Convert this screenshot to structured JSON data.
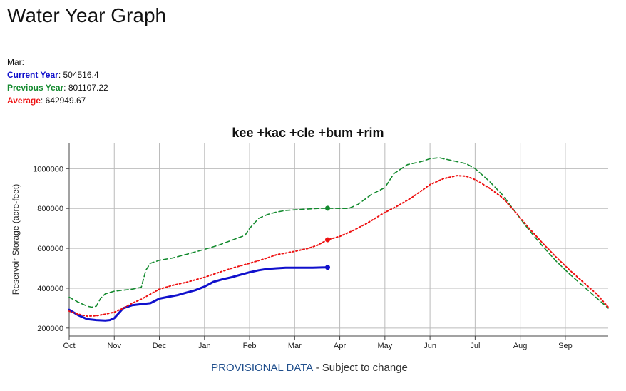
{
  "page_title": "Water Year Graph",
  "summary": {
    "month": "Mar:",
    "current_label": "Current Year",
    "current_value": ": 504516.4",
    "previous_label": "Previous Year",
    "previous_value": ": 801107.22",
    "average_label": "Average",
    "average_value": ": 642949.67"
  },
  "footer": {
    "provisional": "PROVISIONAL DATA",
    "rest": " - Subject to change"
  },
  "colors": {
    "current": "#1010cc",
    "previous": "#138a2e",
    "average": "#ee1111",
    "grid": "#bbbbbb",
    "axis": "#444444"
  },
  "chart_data": {
    "type": "line",
    "title": "kee +kac +cle +bum +rim",
    "ylabel": "Reservoir Storage (acre-feet)",
    "xlabel": "",
    "x_unit": "month of water year",
    "xlim": [
      0,
      11.95
    ],
    "ylim": [
      160000,
      1130000
    ],
    "yticks": [
      200000,
      400000,
      600000,
      800000,
      1000000
    ],
    "ytick_labels": [
      "200000",
      "400000",
      "600000",
      "800000",
      "1000000"
    ],
    "xticks": [
      0,
      1,
      2,
      3,
      4,
      5,
      6,
      7,
      8,
      9,
      10,
      11
    ],
    "xtick_labels": [
      "Oct",
      "Nov",
      "Dec",
      "Jan",
      "Feb",
      "Mar",
      "Apr",
      "May",
      "Jun",
      "Jul",
      "Aug",
      "Sep"
    ],
    "grid": true,
    "series": [
      {
        "key": "current",
        "style": "solid",
        "x": [
          0,
          0.2,
          0.4,
          0.6,
          0.8,
          0.9,
          1.0,
          1.1,
          1.2,
          1.4,
          1.6,
          1.8,
          2.0,
          2.2,
          2.4,
          2.6,
          2.8,
          3.0,
          3.2,
          3.4,
          3.6,
          3.8,
          4.0,
          4.2,
          4.4,
          4.6,
          4.8,
          5.0,
          5.2,
          5.4,
          5.6,
          5.73
        ],
        "values": [
          292000,
          265000,
          245000,
          240000,
          238000,
          240000,
          250000,
          275000,
          300000,
          315000,
          320000,
          325000,
          348000,
          357000,
          365000,
          378000,
          390000,
          408000,
          432000,
          445000,
          455000,
          468000,
          480000,
          490000,
          497000,
          500000,
          503000,
          503000,
          503000,
          503000,
          504000,
          504516.4
        ],
        "end_marker": true
      },
      {
        "key": "previous",
        "style": "dashed",
        "x": [
          0,
          0.2,
          0.4,
          0.5,
          0.6,
          0.7,
          0.8,
          1.0,
          1.2,
          1.4,
          1.6,
          1.7,
          1.8,
          2.0,
          2.3,
          2.6,
          3.0,
          3.3,
          3.6,
          3.9,
          4.0,
          4.2,
          4.4,
          4.6,
          4.8,
          5.0,
          5.2,
          5.5,
          5.73,
          6.0,
          6.2,
          6.4,
          6.7,
          7.0,
          7.2,
          7.5,
          7.8,
          8.0,
          8.2,
          8.5,
          8.8,
          9.0,
          9.3,
          9.6,
          9.9,
          10.2,
          10.5,
          10.8,
          11.1,
          11.4,
          11.7,
          11.95
        ],
        "values": [
          355000,
          330000,
          310000,
          305000,
          310000,
          350000,
          372000,
          385000,
          390000,
          395000,
          405000,
          490000,
          525000,
          540000,
          552000,
          570000,
          595000,
          615000,
          640000,
          665000,
          700000,
          750000,
          770000,
          782000,
          790000,
          793000,
          796000,
          800000,
          801107.22,
          800000,
          800000,
          820000,
          870000,
          905000,
          975000,
          1020000,
          1035000,
          1050000,
          1055000,
          1040000,
          1025000,
          1000000,
          940000,
          870000,
          780000,
          690000,
          610000,
          535000,
          470000,
          410000,
          350000,
          300000
        ],
        "end_marker": false,
        "marker_at_x": 5.73
      },
      {
        "key": "average",
        "style": "dotted",
        "x": [
          0,
          0.2,
          0.4,
          0.6,
          0.8,
          1.0,
          1.2,
          1.4,
          1.6,
          1.8,
          2.0,
          2.3,
          2.6,
          3.0,
          3.3,
          3.6,
          4.0,
          4.3,
          4.6,
          5.0,
          5.3,
          5.5,
          5.73,
          6.0,
          6.3,
          6.6,
          7.0,
          7.3,
          7.6,
          8.0,
          8.3,
          8.6,
          8.8,
          9.0,
          9.3,
          9.6,
          9.9,
          10.2,
          10.5,
          10.8,
          11.1,
          11.4,
          11.7,
          11.95
        ],
        "values": [
          285000,
          270000,
          260000,
          262000,
          270000,
          280000,
          300000,
          325000,
          345000,
          370000,
          395000,
          415000,
          430000,
          455000,
          478000,
          500000,
          525000,
          545000,
          568000,
          585000,
          600000,
          615000,
          642949.67,
          660000,
          690000,
          725000,
          780000,
          815000,
          855000,
          920000,
          950000,
          965000,
          962000,
          945000,
          905000,
          855000,
          780000,
          700000,
          625000,
          555000,
          490000,
          430000,
          370000,
          305000
        ],
        "end_marker": false,
        "marker_at_x": 5.73
      }
    ]
  }
}
